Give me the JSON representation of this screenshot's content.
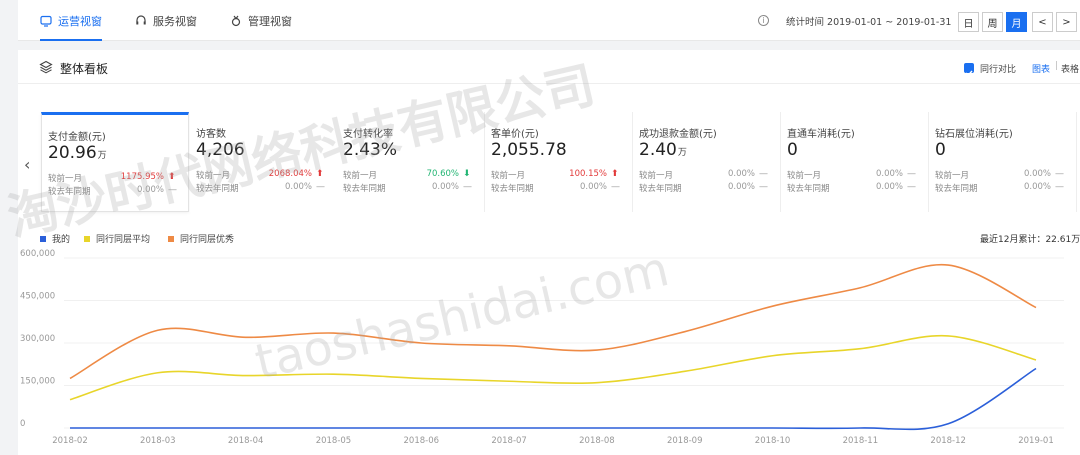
{
  "tabs": [
    {
      "label": "运营视窗",
      "icon": "monitor-icon",
      "active": true
    },
    {
      "label": "服务视窗",
      "icon": "headset-icon",
      "active": false
    },
    {
      "label": "管理视窗",
      "icon": "award-icon",
      "active": false
    }
  ],
  "header": {
    "info_icon": "i",
    "stat_time": "统计时间 2019-01-01 ~ 2019-01-31",
    "period_day": "日",
    "period_week": "周",
    "period_month": "月",
    "prev": "<",
    "next": ">"
  },
  "panel": {
    "title": "整体看板",
    "compare_label": "同行对比",
    "view_chart": "图表",
    "view_sep": "|",
    "view_table": "表格",
    "prev_arrow": "‹"
  },
  "cards": [
    {
      "title": "支付金额(元)",
      "value": "20.96",
      "unit": "万",
      "mom_label": "较前一月",
      "mom": "1175.95%",
      "mom_dir": "up",
      "yoy_label": "较去年同期",
      "yoy": "0.00%",
      "yoy_dir": "—"
    },
    {
      "title": "访客数",
      "value": "4,206",
      "unit": "",
      "mom_label": "较前一月",
      "mom": "2068.04%",
      "mom_dir": "up",
      "yoy_label": "较去年同期",
      "yoy": "0.00%",
      "yoy_dir": "—"
    },
    {
      "title": "支付转化率",
      "value": "2.43%",
      "unit": "",
      "mom_label": "较前一月",
      "mom": "70.60%",
      "mom_dir": "down",
      "yoy_label": "较去年同期",
      "yoy": "0.00%",
      "yoy_dir": "—"
    },
    {
      "title": "客单价(元)",
      "value": "2,055.78",
      "unit": "",
      "mom_label": "较前一月",
      "mom": "100.15%",
      "mom_dir": "up",
      "yoy_label": "较去年同期",
      "yoy": "0.00%",
      "yoy_dir": "—"
    },
    {
      "title": "成功退款金额(元)",
      "value": "2.40",
      "unit": "万",
      "mom_label": "较前一月",
      "mom": "0.00%",
      "mom_dir": "flat",
      "yoy_label": "较去年同期",
      "yoy": "0.00%",
      "yoy_dir": "—"
    },
    {
      "title": "直通车消耗(元)",
      "value": "0",
      "unit": "",
      "mom_label": "较前一月",
      "mom": "0.00%",
      "mom_dir": "flat",
      "yoy_label": "较去年同期",
      "yoy": "0.00%",
      "yoy_dir": "—"
    },
    {
      "title": "钻石展位消耗(元)",
      "value": "0",
      "unit": "",
      "mom_label": "较前一月",
      "mom": "0.00%",
      "mom_dir": "flat",
      "yoy_label": "较去年同期",
      "yoy": "0.00%",
      "yoy_dir": "—"
    }
  ],
  "legend": [
    {
      "name": "我的",
      "color": "#2b5fd9"
    },
    {
      "name": "同行同层平均",
      "color": "#e8d52a"
    },
    {
      "name": "同行同层优秀",
      "color": "#ee8a45"
    }
  ],
  "cumulative": "最近12月累计：22.61万",
  "watermark": [
    "淘沙时代网络科技有限公司",
    "taoshashidai.com"
  ],
  "chart_data": {
    "type": "line",
    "x": [
      "2018-02",
      "2018-03",
      "2018-04",
      "2018-05",
      "2018-06",
      "2018-07",
      "2018-08",
      "2018-09",
      "2018-10",
      "2018-11",
      "2018-12",
      "2019-01"
    ],
    "yticks": [
      "0",
      "150,000",
      "300,000",
      "450,000",
      "600,000"
    ],
    "ylim": [
      0,
      600000
    ],
    "series": [
      {
        "name": "我的",
        "color": "#2b5fd9",
        "values": [
          0,
          0,
          0,
          0,
          0,
          0,
          0,
          0,
          0,
          0,
          15000,
          210000
        ]
      },
      {
        "name": "同行同层平均",
        "color": "#e8d52a",
        "values": [
          100000,
          195000,
          185000,
          190000,
          175000,
          165000,
          160000,
          200000,
          255000,
          280000,
          325000,
          240000
        ]
      },
      {
        "name": "同行同层优秀",
        "color": "#ee8a45",
        "values": [
          175000,
          345000,
          320000,
          335000,
          300000,
          290000,
          275000,
          340000,
          430000,
          495000,
          575000,
          425000
        ]
      }
    ],
    "grid": true,
    "legend_position": "top-left"
  }
}
